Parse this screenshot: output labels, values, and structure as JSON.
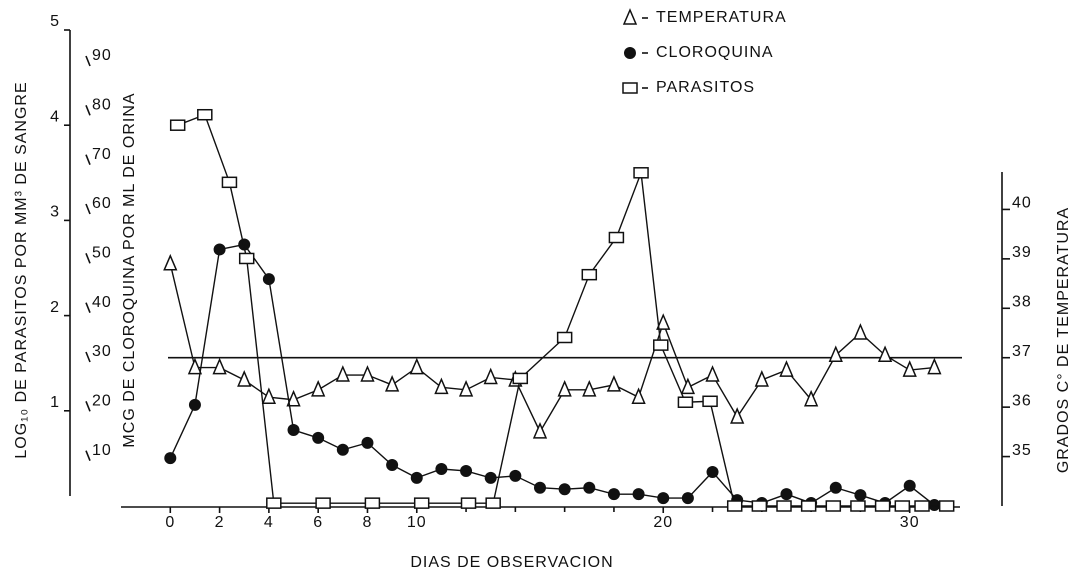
{
  "chart_data": {
    "type": "line",
    "x_label": "DIAS DE OBSERVACION",
    "y_label": "LOG₁₀ DE PARASITOS POR MM³ DE SANGRE",
    "y2_label": "MCG DE CLOROQUINA POR ML DE ORINA",
    "y3_label": "GRADOS C° DE TEMPERATURA",
    "xlim": [
      -2,
      32
    ],
    "xticks": [
      0,
      2,
      4,
      6,
      8,
      10,
      20,
      30
    ],
    "xticks_minor": [
      12,
      14,
      16,
      18,
      22,
      24,
      26,
      28
    ],
    "ylim": [
      0,
      5
    ],
    "yticks": [
      1,
      2,
      3,
      4,
      5
    ],
    "y2lim": [
      0,
      90
    ],
    "y2ticks": [
      10,
      20,
      30,
      40,
      50,
      60,
      70,
      80,
      90
    ],
    "y3lim": [
      34,
      41
    ],
    "y3ticks": [
      35,
      36,
      37,
      38,
      39,
      40
    ],
    "reference_line": 37,
    "legend": "upper right",
    "series": [
      {
        "name": "TEMPERATURA",
        "marker": "triangle",
        "axis": "y3",
        "x": [
          0,
          1,
          2,
          3,
          4,
          5,
          6,
          7,
          8,
          9,
          10,
          11,
          12,
          13,
          14,
          15,
          16,
          17,
          18,
          19,
          20,
          21,
          22,
          23,
          24,
          25,
          26,
          27,
          28,
          29,
          30,
          31
        ],
        "values": [
          38.9,
          36.8,
          36.8,
          36.55,
          36.2,
          36.15,
          36.35,
          36.65,
          36.65,
          36.45,
          36.8,
          36.4,
          36.35,
          36.6,
          36.55,
          35.5,
          36.35,
          36.35,
          36.45,
          36.2,
          37.7,
          36.4,
          36.65,
          35.8,
          36.55,
          36.75,
          36.15,
          37.05,
          37.5,
          37.05,
          36.75,
          36.8
        ]
      },
      {
        "name": "CLOROQUINA",
        "marker": "circle",
        "axis": "y2",
        "x": [
          0,
          1,
          2,
          3,
          4,
          5,
          6,
          7,
          8,
          9,
          10,
          11,
          12,
          13,
          14,
          15,
          16,
          17,
          18,
          19,
          20,
          21,
          22,
          23,
          24,
          25,
          26,
          27,
          28,
          29,
          30,
          31
        ],
        "values": [
          9.7,
          20.5,
          52,
          53,
          46,
          15.4,
          13.8,
          11.4,
          12.8,
          8.3,
          5.7,
          7.5,
          7.1,
          5.7,
          6.1,
          3.7,
          3.4,
          3.7,
          2.4,
          2.4,
          1.6,
          1.6,
          6.9,
          1.2,
          0.6,
          2.4,
          0.6,
          3.7,
          2.2,
          0.6,
          4.1,
          0.2
        ]
      },
      {
        "name": "PARASITOS",
        "marker": "square",
        "axis": "y",
        "x": [
          0.3,
          1.4,
          2.4,
          3.1,
          4.2,
          6.2,
          8.2,
          10.2,
          12.1,
          13.1,
          14.2,
          16,
          17,
          18.1,
          19.1,
          19.9,
          20.9,
          21.9,
          22.9,
          23.9,
          24.9,
          25.9,
          26.9,
          27.9,
          28.9,
          29.7,
          30.5,
          31.5
        ],
        "values": [
          4.0,
          4.11,
          3.4,
          2.6,
          0.03,
          0.03,
          0.03,
          0.03,
          0.03,
          0.03,
          1.34,
          1.77,
          2.43,
          2.82,
          3.5,
          1.69,
          1.09,
          1.1,
          0,
          0,
          0,
          0,
          0,
          0,
          0,
          0,
          0,
          0
        ]
      }
    ]
  }
}
